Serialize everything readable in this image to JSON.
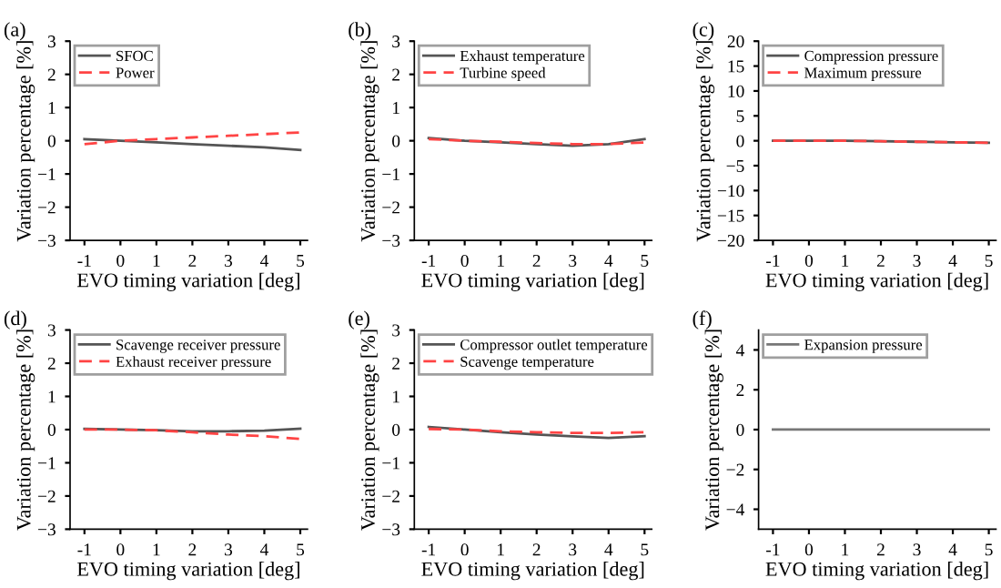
{
  "chart_data": [
    {
      "type": "line",
      "title": "(a)",
      "xlabel": "EVO timing variation [deg]",
      "ylabel": "Variation percentage [%]",
      "x": [
        -1,
        0,
        1,
        2,
        3,
        4,
        5
      ],
      "xlim": [
        -1.4,
        5.2
      ],
      "xticks": [
        -1,
        0,
        1,
        2,
        3,
        4,
        5
      ],
      "ylim": [
        -3,
        3
      ],
      "yticks": [
        {
          "value": -3,
          "label": "−3"
        },
        {
          "value": -2,
          "label": "−2"
        },
        {
          "value": -1,
          "label": "−1"
        },
        0,
        1,
        2,
        3
      ],
      "legend": "top left",
      "grid": false,
      "marker": "none",
      "series": [
        {
          "name": "SFOC",
          "color": "#555555",
          "line_style": "solid",
          "values": [
            0.05,
            0,
            -0.05,
            -0.1,
            -0.15,
            -0.2,
            -0.28
          ]
        },
        {
          "name": "Power",
          "color": "#ff4444",
          "line_style": "dashed",
          "values": [
            -0.1,
            0,
            0.05,
            0.1,
            0.15,
            0.2,
            0.25
          ]
        }
      ]
    },
    {
      "type": "line",
      "title": "(b)",
      "xlabel": "EVO timing variation [deg]",
      "ylabel": "Variation percentage [%]",
      "x": [
        -1,
        0,
        1,
        2,
        3,
        4,
        5
      ],
      "xlim": [
        -1.4,
        5.2
      ],
      "xticks": [
        -1,
        0,
        1,
        2,
        3,
        4,
        5
      ],
      "ylim": [
        -3,
        3
      ],
      "yticks": [
        {
          "value": -3,
          "label": "−3"
        },
        {
          "value": -2,
          "label": "−2"
        },
        {
          "value": -1,
          "label": "−1"
        },
        0,
        1,
        2,
        3
      ],
      "legend": "top left",
      "grid": false,
      "marker": "none",
      "series": [
        {
          "name": "Exhaust temperature",
          "color": "#555555",
          "line_style": "solid",
          "values": [
            0.08,
            0,
            -0.05,
            -0.1,
            -0.15,
            -0.1,
            0.05
          ]
        },
        {
          "name": "Turbine speed",
          "color": "#ff4444",
          "line_style": "dashed",
          "values": [
            0.05,
            0,
            -0.03,
            -0.07,
            -0.1,
            -0.1,
            -0.05
          ]
        }
      ]
    },
    {
      "type": "line",
      "title": "(c)",
      "xlabel": "EVO timing variation [deg]",
      "ylabel": "Variation percentage [%]",
      "x": [
        -1,
        0,
        1,
        2,
        3,
        4,
        5
      ],
      "xlim": [
        -1.4,
        5.2
      ],
      "xticks": [
        -1,
        0,
        1,
        2,
        3,
        4,
        5
      ],
      "ylim": [
        -20,
        20
      ],
      "yticks": [
        {
          "value": -20,
          "label": "−20"
        },
        {
          "value": -15,
          "label": "−15"
        },
        {
          "value": -10,
          "label": "−10"
        },
        {
          "value": -5,
          "label": "−5"
        },
        0,
        5,
        10,
        15,
        20
      ],
      "legend": "top left",
      "grid": false,
      "marker": "none",
      "series": [
        {
          "name": "Compression pressure",
          "color": "#555555",
          "line_style": "solid",
          "values": [
            0,
            0,
            0,
            -0.1,
            -0.2,
            -0.3,
            -0.4
          ]
        },
        {
          "name": "Maximum pressure",
          "color": "#ff4444",
          "line_style": "dashed",
          "values": [
            0,
            0,
            0,
            -0.1,
            -0.2,
            -0.3,
            -0.4
          ]
        }
      ]
    },
    {
      "type": "line",
      "title": "(d)",
      "xlabel": "EVO timing variation [deg]",
      "ylabel": "Variation percentage [%]",
      "x": [
        -1,
        0,
        1,
        2,
        3,
        4,
        5
      ],
      "xlim": [
        -1.4,
        5.2
      ],
      "xticks": [
        -1,
        0,
        1,
        2,
        3,
        4,
        5
      ],
      "ylim": [
        -3,
        3
      ],
      "yticks": [
        {
          "value": -3,
          "label": "−3"
        },
        {
          "value": -2,
          "label": "−2"
        },
        {
          "value": -1,
          "label": "−1"
        },
        0,
        1,
        2,
        3
      ],
      "legend": "top left",
      "grid": false,
      "marker": "none",
      "series": [
        {
          "name": "Scavenge receiver pressure",
          "color": "#555555",
          "line_style": "solid",
          "values": [
            0.02,
            0,
            -0.02,
            -0.05,
            -0.05,
            -0.03,
            0.03
          ]
        },
        {
          "name": "Exhaust receiver pressure",
          "color": "#ff4444",
          "line_style": "dashed",
          "values": [
            0,
            0,
            -0.02,
            -0.08,
            -0.15,
            -0.2,
            -0.28
          ]
        }
      ]
    },
    {
      "type": "line",
      "title": "(e)",
      "xlabel": "EVO timing variation [deg]",
      "ylabel": "Variation percentage [%]",
      "x": [
        -1,
        0,
        1,
        2,
        3,
        4,
        5
      ],
      "xlim": [
        -1.4,
        5.2
      ],
      "xticks": [
        -1,
        0,
        1,
        2,
        3,
        4,
        5
      ],
      "ylim": [
        -3,
        3
      ],
      "yticks": [
        {
          "value": -3,
          "label": "−3"
        },
        {
          "value": -2,
          "label": "−2"
        },
        {
          "value": -1,
          "label": "−1"
        },
        0,
        1,
        2,
        3
      ],
      "legend": "top left",
      "grid": false,
      "marker": "none",
      "series": [
        {
          "name": "Compressor outlet temperature",
          "color": "#555555",
          "line_style": "solid",
          "values": [
            0.08,
            0,
            -0.08,
            -0.15,
            -0.2,
            -0.25,
            -0.2
          ]
        },
        {
          "name": "Scavenge temperature",
          "color": "#ff4444",
          "line_style": "dashed",
          "values": [
            0.02,
            0,
            -0.05,
            -0.08,
            -0.1,
            -0.1,
            -0.08
          ]
        }
      ]
    },
    {
      "type": "line",
      "title": "(f)",
      "xlabel": "EVO timing variation [deg]",
      "ylabel": "Variation percentage [%]",
      "x": [
        -1,
        0,
        1,
        2,
        3,
        4,
        5
      ],
      "xlim": [
        -1.4,
        5.2
      ],
      "xticks": [
        -1,
        0,
        1,
        2,
        3,
        4,
        5
      ],
      "ylim": [
        -5,
        5
      ],
      "yticks": [
        {
          "value": -4,
          "label": "−4"
        },
        {
          "value": -2,
          "label": "−2"
        },
        0,
        2,
        4
      ],
      "legend": "top left",
      "grid": false,
      "marker": "none",
      "series": [
        {
          "name": "Expansion pressure",
          "color": "#777777",
          "line_style": "solid",
          "values": [
            0,
            0,
            0,
            0,
            0,
            0,
            0
          ]
        }
      ]
    }
  ]
}
